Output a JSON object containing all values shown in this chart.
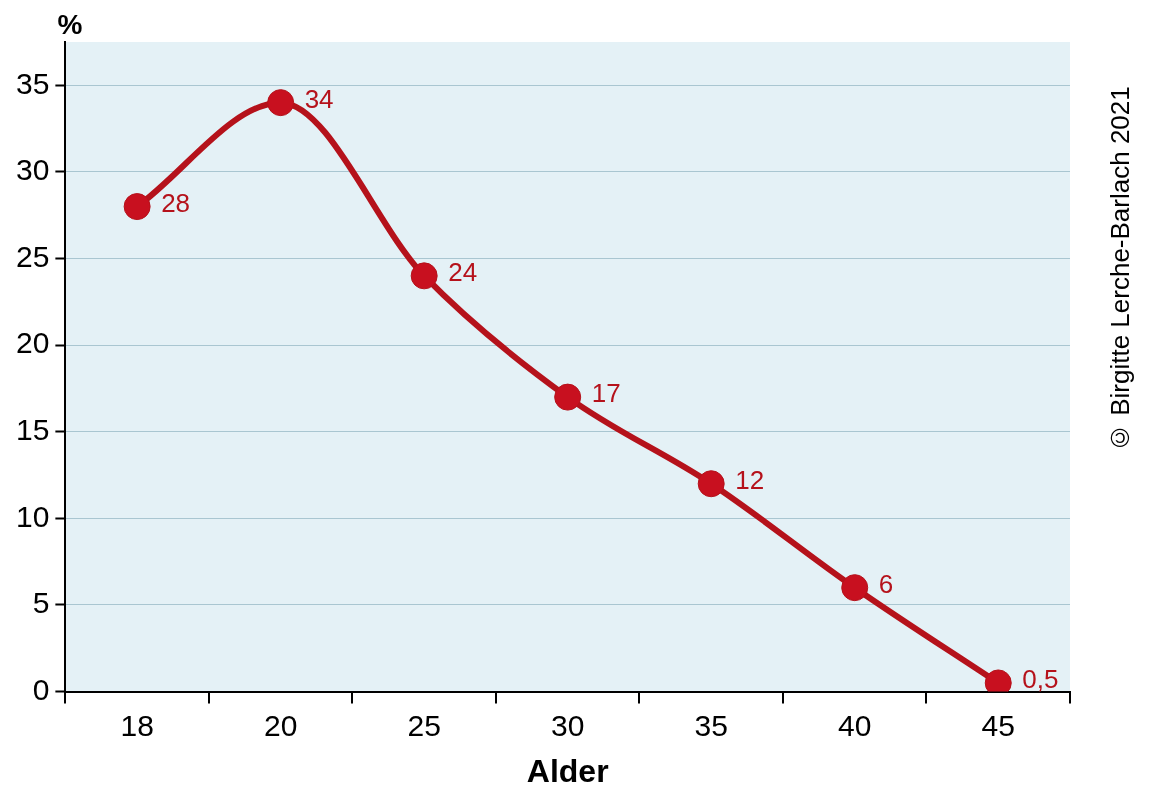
{
  "chart_data": {
    "type": "line",
    "xlabel": "Alder",
    "ylabel": "%",
    "categories": [
      "18",
      "20",
      "25",
      "30",
      "35",
      "40",
      "45"
    ],
    "series": [
      {
        "color": "#b5121b",
        "values": [
          28,
          34,
          24,
          17,
          12,
          6,
          0.5
        ],
        "value_labels": [
          "28",
          "34",
          "24",
          "17",
          "12",
          "6",
          "0,5"
        ]
      }
    ],
    "ylim": [
      0,
      37.5
    ],
    "yticks": [
      0,
      5,
      10,
      15,
      20,
      25,
      30,
      35
    ],
    "grid": "y",
    "legend": false,
    "marker": "circle",
    "line_style": "solid",
    "annotations": [
      "© Birgitte Lerche-Barlach 2021"
    ]
  }
}
